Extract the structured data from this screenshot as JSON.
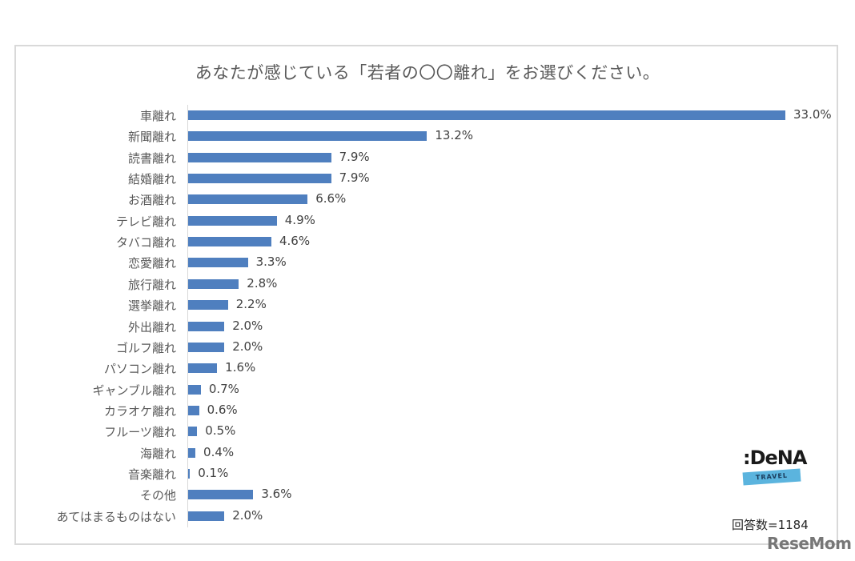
{
  "chart_data": {
    "type": "bar",
    "orientation": "horizontal",
    "title": "あなたが感じている「若者の〇〇離れ」をお選びください。",
    "xlabel": "",
    "ylabel": "",
    "categories": [
      "車離れ",
      "新聞離れ",
      "読書離れ",
      "結婚離れ",
      "お酒離れ",
      "テレビ離れ",
      "タバコ離れ",
      "恋愛離れ",
      "旅行離れ",
      "選挙離れ",
      "外出離れ",
      "ゴルフ離れ",
      "パソコン離れ",
      "ギャンブル離れ",
      "カラオケ離れ",
      "フルーツ離れ",
      "海離れ",
      "音楽離れ",
      "その他",
      "あてはまるものはない"
    ],
    "values": [
      33.0,
      13.2,
      7.9,
      7.9,
      6.6,
      4.9,
      4.6,
      3.3,
      2.8,
      2.2,
      2.0,
      2.0,
      1.6,
      0.7,
      0.6,
      0.5,
      0.4,
      0.1,
      3.6,
      2.0
    ],
    "value_labels": [
      "33.0%",
      "13.2%",
      "7.9%",
      "7.9%",
      "6.6%",
      "4.9%",
      "4.6%",
      "3.3%",
      "2.8%",
      "2.2%",
      "2.0%",
      "2.0%",
      "1.6%",
      "0.7%",
      "0.6%",
      "0.5%",
      "0.4%",
      "0.1%",
      "3.6%",
      "2.0%"
    ],
    "unit": "%",
    "grid": false,
    "legend": null,
    "bar_color": "#4f7fbf",
    "annotation": "回答数=1184"
  },
  "logo": {
    "brand": ":DeNA",
    "sub": "TRAVEL"
  },
  "sample_size": "回答数=1184",
  "watermark": "ReseMom"
}
